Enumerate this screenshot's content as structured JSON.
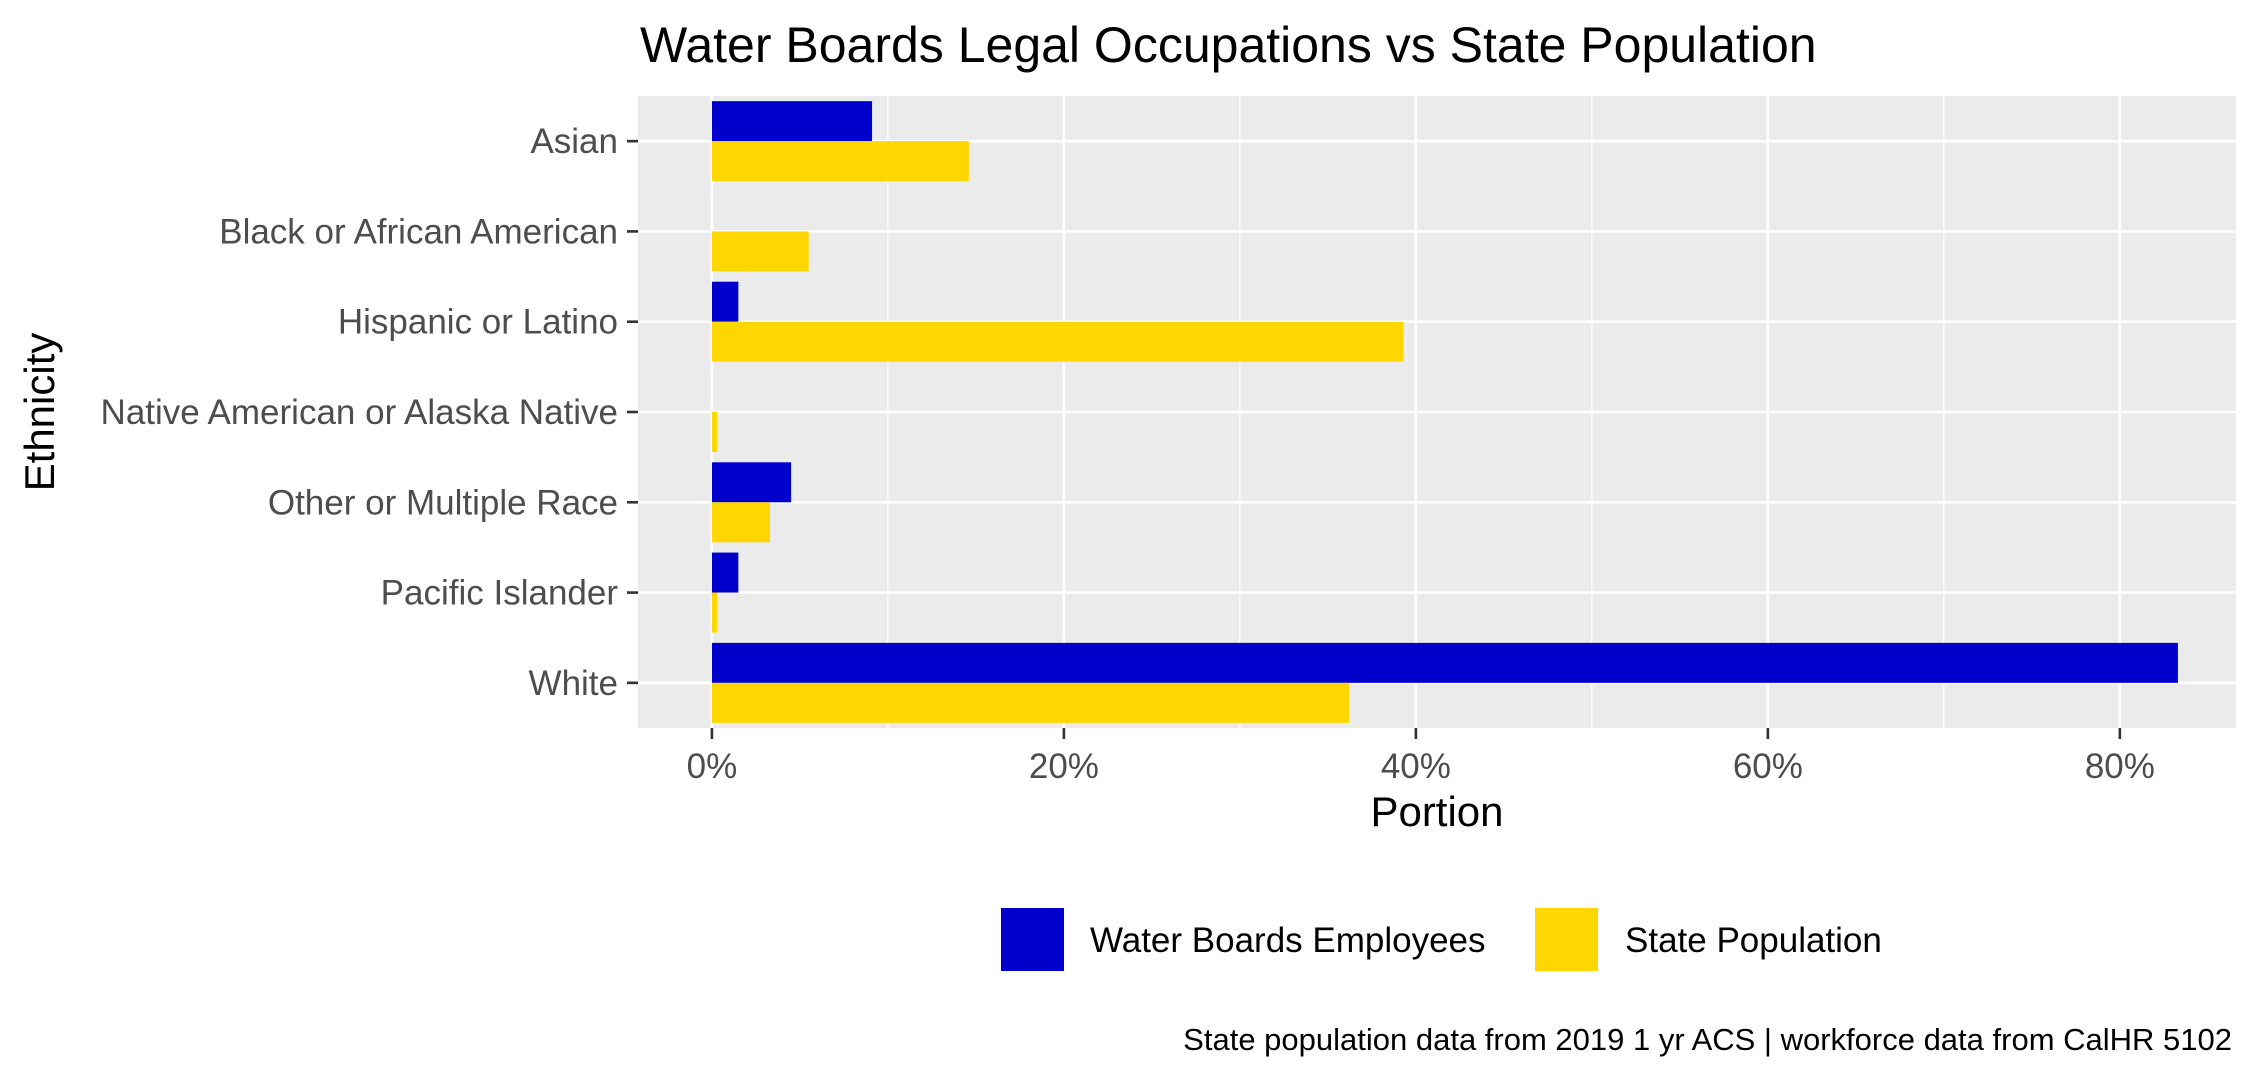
{
  "chart_data": {
    "type": "bar",
    "orientation": "horizontal",
    "title": "Water Boards Legal Occupations vs State Population",
    "xlabel": "Portion",
    "ylabel": "Ethnicity",
    "categories": [
      "White",
      "Pacific Islander",
      "Other or Multiple Race",
      "Native American or Alaska Native",
      "Hispanic or Latino",
      "Black or African American",
      "Asian"
    ],
    "series": [
      {
        "name": "Water Boards Employees",
        "color": "#0000CD",
        "values": [
          0.833,
          0.015,
          0.045,
          0.0,
          0.015,
          0.0,
          0.091
        ]
      },
      {
        "name": "State Population",
        "color": "#FFD700",
        "values": [
          0.362,
          0.003,
          0.033,
          0.003,
          0.393,
          0.055,
          0.146
        ]
      }
    ],
    "xlim": [
      -0.042,
      0.866
    ],
    "xticks": [
      0,
      0.2,
      0.4,
      0.6,
      0.8
    ],
    "xtick_labels": [
      "0%",
      "20%",
      "40%",
      "60%",
      "80%"
    ],
    "grid": true,
    "panel_background": "#EBEBEB",
    "legend_position": "bottom",
    "caption": "State population data from 2019 1 yr ACS  |  workforce data from CalHR 5102"
  }
}
